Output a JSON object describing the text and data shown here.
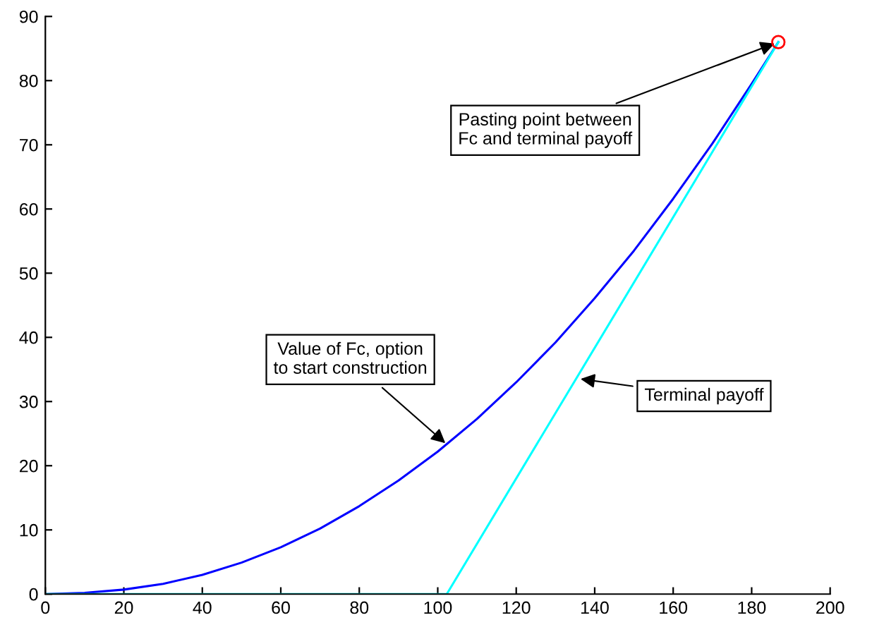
{
  "chart_data": {
    "type": "line",
    "xlim": [
      0,
      200
    ],
    "ylim": [
      0,
      90
    ],
    "xticks": [
      0,
      20,
      40,
      60,
      80,
      100,
      120,
      140,
      160,
      180,
      200
    ],
    "yticks": [
      0,
      10,
      20,
      30,
      40,
      50,
      60,
      70,
      80,
      90
    ],
    "grid": false,
    "legend": false,
    "series": [
      {
        "color": "#0000ff",
        "x": [
          0,
          10,
          20,
          30,
          40,
          50,
          60,
          70,
          80,
          90,
          100,
          110,
          120,
          130,
          140,
          150,
          160,
          170,
          180,
          186.8
        ],
        "values": [
          0,
          0.2,
          0.7,
          1.6,
          3.0,
          4.9,
          7.3,
          10.2,
          13.7,
          17.7,
          22.2,
          27.3,
          33.0,
          39.2,
          46.1,
          53.5,
          61.6,
          70.2,
          79.5,
          86.0
        ]
      },
      {
        "color": "#00ffff",
        "x": [
          0,
          102.3,
          186.8
        ],
        "values": [
          0,
          0,
          86.0
        ]
      },
      {
        "type": "scatter",
        "color": "#ff0000",
        "marker": "circle",
        "x": [
          186.8
        ],
        "values": [
          86.0
        ]
      }
    ],
    "annotations": [
      {
        "text": "Pasting point between\nFc and terminal payoff",
        "x": 186.8,
        "y": 86.0
      },
      {
        "text": "Value of Fc, option\nto start construction",
        "x": 102.7,
        "y": 23.1
      },
      {
        "text": "Terminal payoff",
        "x": 135.4,
        "y": 33.6
      }
    ]
  }
}
